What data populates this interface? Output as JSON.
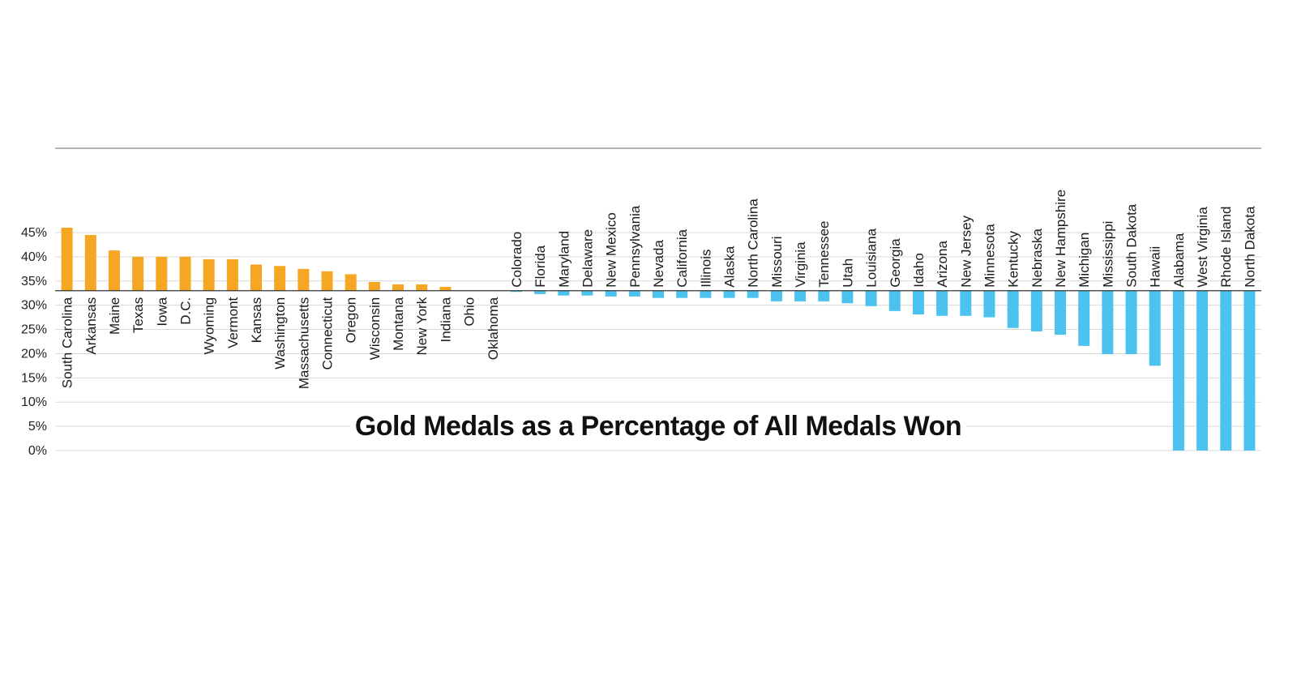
{
  "chart_data": {
    "type": "bar",
    "title": "Gold Medals as a Percentage of All Medals Won",
    "baseline": 33,
    "ylim": [
      0,
      45
    ],
    "yticks": [
      0,
      5,
      10,
      15,
      20,
      25,
      30,
      35,
      40,
      45
    ],
    "ytick_labels": [
      "0%",
      "5%",
      "10%",
      "15%",
      "20%",
      "25%",
      "30%",
      "35%",
      "40%",
      "45%"
    ],
    "grid": true,
    "colors": {
      "above": "#f5a623",
      "below": "#4cc3ef"
    },
    "categories": [
      "South Carolina",
      "Arkansas",
      "Maine",
      "Texas",
      "Iowa",
      "D.C.",
      "Wyoming",
      "Vermont",
      "Kansas",
      "Washington",
      "Massachusetts",
      "Connecticut",
      "Oregon",
      "Wisconsin",
      "Montana",
      "New York",
      "Indiana",
      "Ohio",
      "Oklahoma",
      "Colorado",
      "Florida",
      "Maryland",
      "Delaware",
      "New Mexico",
      "Pennsylvania",
      "Nevada",
      "California",
      "Illinois",
      "Alaska",
      "North Carolina",
      "Missouri",
      "Virginia",
      "Tennessee",
      "Utah",
      "Louisiana",
      "Georgia",
      "Idaho",
      "Arizona",
      "New Jersey",
      "Minnesota",
      "Kentucky",
      "Nebraska",
      "New Hampshire",
      "Michigan",
      "Mississippi",
      "South Dakota",
      "Hawaii",
      "Alabama",
      "West Virginia",
      "Rhode Island",
      "North Dakota"
    ],
    "values": [
      46.0,
      44.5,
      41.3,
      40.0,
      40.0,
      40.0,
      39.5,
      39.5,
      38.4,
      38.1,
      37.5,
      37.0,
      36.4,
      34.8,
      34.3,
      34.3,
      33.8,
      33.0,
      33.0,
      32.8,
      32.3,
      32.0,
      32.0,
      31.8,
      31.8,
      31.5,
      31.5,
      31.5,
      31.5,
      31.5,
      30.8,
      30.8,
      30.8,
      30.4,
      29.8,
      28.8,
      28.1,
      27.8,
      27.8,
      27.5,
      25.3,
      24.6,
      23.9,
      21.6,
      19.9,
      19.9,
      17.5,
      0,
      0,
      0,
      0
    ]
  }
}
